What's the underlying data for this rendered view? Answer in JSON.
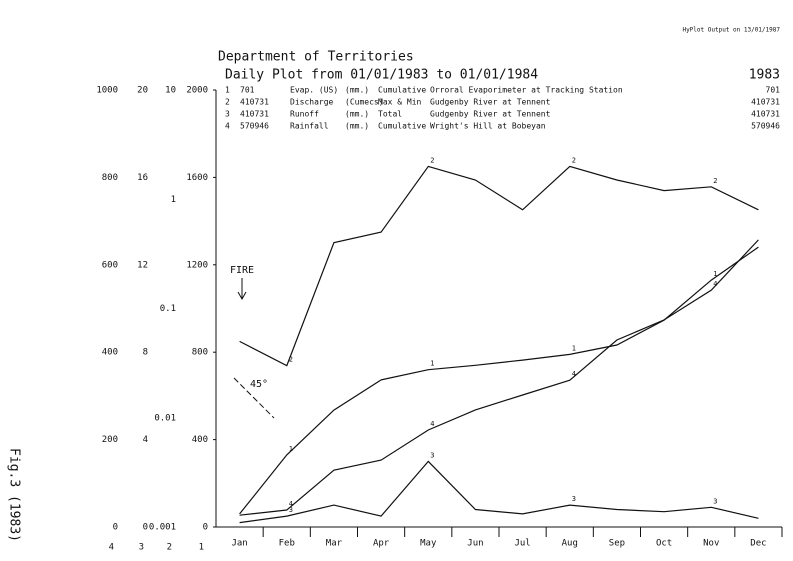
{
  "chart_data": {
    "type": "line",
    "title": "Department of Territories",
    "subtitle": "Daily Plot from 01/01/1983 to 01/01/1984",
    "year": "1983",
    "output_note": "HyPlot Output on 13/01/1987",
    "figure_label": "Fig.3 (1983)",
    "annotations": [
      "FIRE",
      "45°"
    ],
    "legend_rows": [
      [
        "1",
        "701",
        "Evap. (US)",
        "(mm.)",
        "Cumulative",
        "Orroral Evaporimeter at Tracking Station",
        "701"
      ],
      [
        "2",
        "410731",
        "Discharge",
        "(Cumecs)",
        "Max & Min",
        "Gudgenby River at Tennent",
        "410731"
      ],
      [
        "3",
        "410731",
        "Runoff",
        "(mm.)",
        "Total",
        "Gudgenby River at Tennent",
        "410731"
      ],
      [
        "4",
        "570946",
        "Rainfall",
        "(mm.)",
        "Cumulative",
        "Wright's Hill at Bobeyan",
        "570946"
      ]
    ],
    "categories": [
      "Jan",
      "Feb",
      "Mar",
      "Apr",
      "May",
      "Jun",
      "Jul",
      "Aug",
      "Sep",
      "Oct",
      "Nov",
      "Dec"
    ],
    "axes": [
      {
        "label": "4",
        "ylim": [
          0,
          1000
        ],
        "yticks": [
          0,
          200,
          400,
          600,
          800,
          1000
        ]
      },
      {
        "label": "3",
        "ylim": [
          0,
          20
        ],
        "yticks": [
          0,
          4,
          8,
          12,
          16,
          20
        ]
      },
      {
        "label": "2",
        "log": true,
        "ylim": [
          0.001,
          10
        ],
        "yticks": [
          0.001,
          0.01,
          0.1,
          1,
          10
        ]
      },
      {
        "label": "1",
        "ylim": [
          0,
          2000
        ],
        "yticks": [
          0,
          400,
          800,
          1200,
          1600,
          2000
        ]
      }
    ],
    "series": [
      {
        "name": "1",
        "color": "#111111",
        "axis": 3,
        "values": [
          60,
          330,
          535,
          673,
          720,
          740,
          764,
          790,
          833,
          947,
          1130,
          1281
        ]
      },
      {
        "name": "2",
        "color": "#111111",
        "axis": 2,
        "values": [
          0.05,
          0.03,
          0.4,
          0.5,
          2,
          1.5,
          0.8,
          2,
          1.5,
          1.2,
          1.3,
          0.8
        ]
      },
      {
        "name": "3",
        "color": "#111111",
        "axis": 1,
        "values": [
          0.2,
          0.5,
          1,
          0.5,
          3,
          0.8,
          0.6,
          1,
          0.8,
          0.7,
          0.9,
          0.4
        ]
      },
      {
        "name": "4",
        "color": "#111111",
        "axis": 0,
        "values": [
          27,
          39,
          130,
          153,
          222,
          268,
          302,
          336,
          428,
          474,
          542,
          657
        ]
      }
    ]
  }
}
